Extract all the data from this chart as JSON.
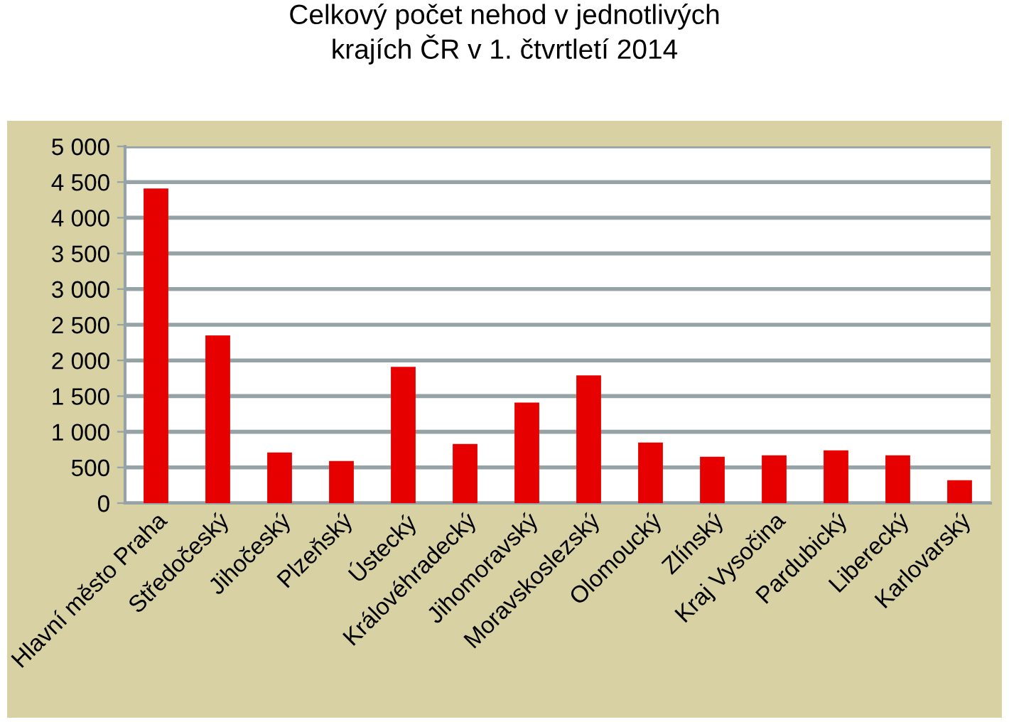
{
  "chart_data": {
    "type": "bar",
    "title": "Celkový počet nehod v jednotlivých\nkrajích ČR v 1. čtvrtletí 2014",
    "categories": [
      "Hlavní město Praha",
      "Středočeský",
      "Jihočeský",
      "Plzeňský",
      "Ústecký",
      "Královéhradecký",
      "Jihomoravský",
      "Moravskoslezský",
      "Olomoucký",
      "Zlínský",
      "Kraj Vysočina",
      "Pardubický",
      "Liberecký",
      "Karlovarský"
    ],
    "values": [
      4410,
      2350,
      710,
      590,
      1910,
      830,
      1410,
      1790,
      850,
      650,
      670,
      740,
      670,
      320
    ],
    "color": "#e60000",
    "ylim": [
      0,
      5000
    ],
    "yticks": [
      0,
      {
        "value": 500,
        "label": "500"
      },
      {
        "value": 1000,
        "label": "1 000"
      },
      {
        "value": 1500,
        "label": "1 500"
      },
      {
        "value": 2000,
        "label": "2 000"
      },
      {
        "value": 2500,
        "label": "2 500"
      },
      {
        "value": 3000,
        "label": "3 000"
      },
      {
        "value": 3500,
        "label": "3 500"
      },
      {
        "value": 4000,
        "label": "4 000"
      },
      {
        "value": 4500,
        "label": "4 500"
      },
      {
        "value": 5000,
        "label": "5 000"
      }
    ],
    "grid": "y",
    "legend": false
  }
}
